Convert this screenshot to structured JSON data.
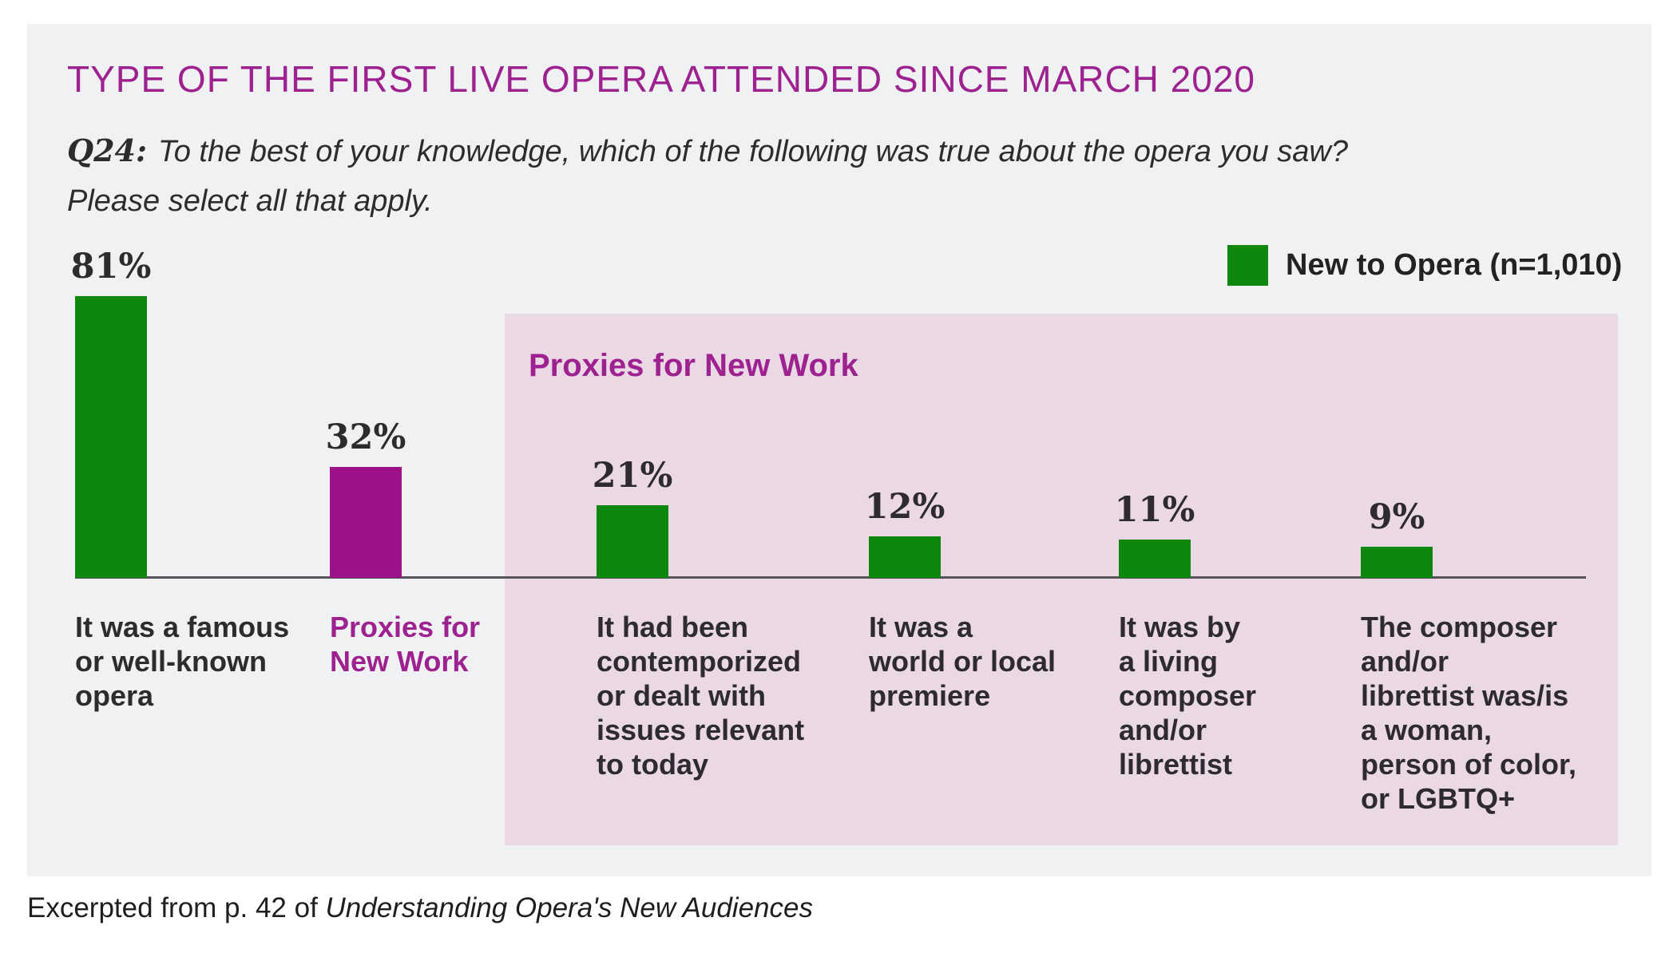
{
  "header": {
    "title": "TYPE OF THE FIRST LIVE OPERA ATTENDED SINCE MARCH 2020",
    "accent_color": "#9e2190"
  },
  "question": {
    "label": "Q24:",
    "line1": "To the best of your knowledge, which of the following was true about the opera you saw?",
    "line2": "Please select all that apply."
  },
  "legend": {
    "label": "New to Opera (n=1,010)",
    "swatch_color": "#0d870d",
    "position": "top-right"
  },
  "proxies_group": {
    "label": "Proxies for New Work",
    "bg_color": "#ead9e4",
    "label_color": "#9e2190"
  },
  "footer": {
    "prefix": "Excerpted from p. 42 of ",
    "source_italic": "Understanding Opera's New Audiences"
  },
  "chart_data": {
    "type": "bar",
    "title": "TYPE OF THE FIRST LIVE OPERA ATTENDED SINCE MARCH 2020",
    "xlabel": "",
    "ylabel": "",
    "unit": "%",
    "ylim": [
      0,
      100
    ],
    "grid": false,
    "legend_position": "top-right",
    "series_name": "New to Opera (n=1,010)",
    "categories": [
      "It was a famous or well-known opera",
      "Proxies for New Work",
      "It had been contemporized or dealt with issues relevant to today",
      "It was a world or local premiere",
      "It was by a living composer and/or librettist",
      "The composer and/or librettist was/is a woman, person of color, or LGBTQ+"
    ],
    "values": [
      81,
      32,
      21,
      12,
      11,
      9
    ],
    "group_annotation": {
      "label": "Proxies for New Work",
      "member_indexes": [
        2,
        3,
        4,
        5
      ]
    },
    "bars": [
      {
        "category_lines": [
          "It was a famous",
          "or well-known",
          "opera"
        ],
        "value": 81,
        "value_label": "81%",
        "color": "#0d870d",
        "category_color": "#2d2b2d"
      },
      {
        "category_lines": [
          "Proxies for",
          "New Work"
        ],
        "value": 32,
        "value_label": "32%",
        "color": "#9c1188",
        "category_color": "#9e2190"
      },
      {
        "category_lines": [
          "It had been",
          "contemporized",
          "or dealt with",
          "issues relevant",
          "to today"
        ],
        "value": 21,
        "value_label": "21%",
        "color": "#0d870d",
        "category_color": "#2d2b2d"
      },
      {
        "category_lines": [
          "It was a",
          "world or local",
          "premiere"
        ],
        "value": 12,
        "value_label": "12%",
        "color": "#0d870d",
        "category_color": "#2d2b2d"
      },
      {
        "category_lines": [
          "It was by",
          "a living",
          "composer",
          "and/or",
          "librettist"
        ],
        "value": 11,
        "value_label": "11%",
        "color": "#0d870d",
        "category_color": "#2d2b2d"
      },
      {
        "category_lines": [
          "The composer",
          "and/or",
          "librettist was/is",
          "a woman,",
          "person of color,",
          "or LGBTQ+"
        ],
        "value": 9,
        "value_label": "9%",
        "color": "#0d870d",
        "category_color": "#2d2b2d"
      }
    ]
  }
}
